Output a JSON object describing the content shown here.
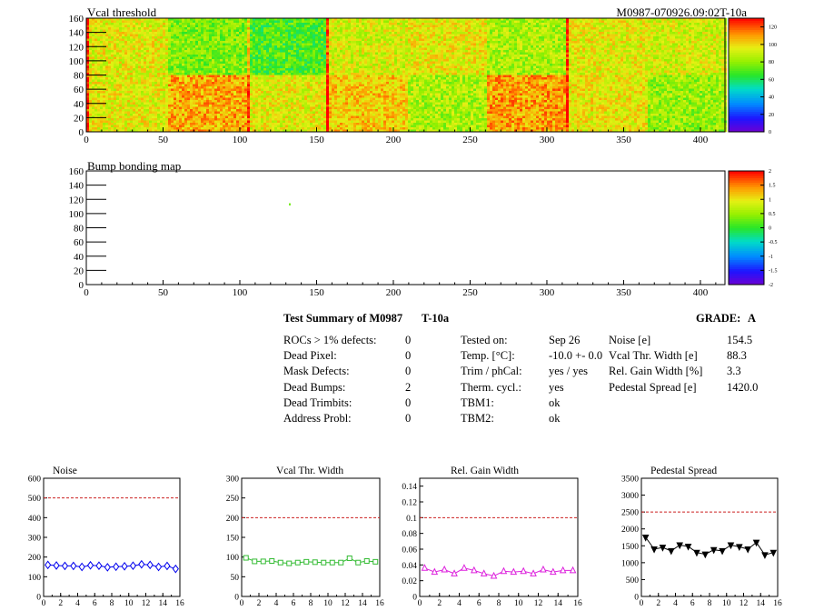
{
  "header": {
    "map1_title": "Vcal threshold",
    "module_id": "M0987-070926.09:02T-10a",
    "map2_title": "Bump bonding map"
  },
  "maps": {
    "x_ticks": [
      "0",
      "50",
      "100",
      "150",
      "200",
      "250",
      "300",
      "350",
      "400"
    ],
    "y_ticks": [
      "0",
      "20",
      "40",
      "60",
      "80",
      "100",
      "120",
      "140",
      "160"
    ],
    "threshold_palette_ticks": [
      "0",
      "20",
      "40",
      "60",
      "80",
      "100",
      "120"
    ],
    "bump_palette_ticks": [
      "-2",
      "-1.5",
      "-1",
      "-0.5",
      "0",
      "0.5",
      "1",
      "1.5",
      "2"
    ]
  },
  "summary": {
    "title": "Test Summary of M0987",
    "tag": "T-10a",
    "grade_label": "GRADE:",
    "grade": "A",
    "left": [
      {
        "label": "ROCs > 1% defects:",
        "value": "0"
      },
      {
        "label": "Dead Pixel:",
        "value": "0"
      },
      {
        "label": "Mask Defects:",
        "value": "0"
      },
      {
        "label": "Dead Bumps:",
        "value": "2"
      },
      {
        "label": "Dead Trimbits:",
        "value": "0"
      },
      {
        "label": "Address Probl:",
        "value": "0"
      }
    ],
    "middle": [
      {
        "label": "Tested on:",
        "value": "Sep 26"
      },
      {
        "label": "Temp. [°C]:",
        "value": "-10.0 +- 0.0"
      },
      {
        "label": "Trim / phCal:",
        "value": "yes / yes"
      },
      {
        "label": "Therm. cycl.:",
        "value": "yes"
      },
      {
        "label": "TBM1:",
        "value": "ok"
      },
      {
        "label": "TBM2:",
        "value": "ok"
      }
    ],
    "right": [
      {
        "label": "Noise [e]",
        "value": "154.5"
      },
      {
        "label": "Vcal Thr. Width [e]",
        "value": "88.3"
      },
      {
        "label": "Rel. Gain Width [%]",
        "value": "3.3"
      },
      {
        "label": "Pedestal Spread [e]",
        "value": "1420.0"
      }
    ]
  },
  "colors": {
    "noise": "#0000ee",
    "vcal": "#33bb33",
    "gain": "#dd22dd",
    "pedestal": "#000000",
    "limit": "#cc2222"
  },
  "chart_data": [
    {
      "type": "heatmap",
      "title": "Vcal threshold",
      "xlim": [
        0,
        416
      ],
      "ylim": [
        0,
        160
      ],
      "zlim": [
        0,
        130
      ],
      "description_cols": 8,
      "description_rows": 2,
      "roc_means_top": [
        95,
        78,
        70,
        92,
        96,
        85,
        95,
        92
      ],
      "roc_means_bottom": [
        95,
        108,
        95,
        103,
        85,
        110,
        97,
        82
      ]
    },
    {
      "type": "heatmap",
      "title": "Bump bonding map",
      "xlim": [
        0,
        416
      ],
      "ylim": [
        0,
        160
      ],
      "zlim": [
        -2,
        2
      ],
      "points": [
        {
          "x": 132,
          "y": 112,
          "z": 0.3
        }
      ]
    },
    {
      "type": "line",
      "title": "Noise",
      "x": [
        0,
        1,
        2,
        3,
        4,
        5,
        6,
        7,
        8,
        9,
        10,
        11,
        12,
        13,
        14,
        15
      ],
      "values": [
        160,
        157,
        155,
        155,
        150,
        158,
        156,
        148,
        151,
        153,
        156,
        163,
        160,
        150,
        155,
        140
      ],
      "xlim": [
        0,
        16
      ],
      "ylim": [
        0,
        600
      ],
      "xticks": [
        "0",
        "2",
        "4",
        "6",
        "8",
        "10",
        "12",
        "14",
        "16"
      ],
      "yticks": [
        "0",
        "100",
        "200",
        "300",
        "400",
        "500",
        "600"
      ],
      "limit": 500,
      "marker": "diamond"
    },
    {
      "type": "line",
      "title": "Vcal Thr. Width",
      "x": [
        0,
        1,
        2,
        3,
        4,
        5,
        6,
        7,
        8,
        9,
        10,
        11,
        12,
        13,
        14,
        15
      ],
      "values": [
        98,
        89,
        89,
        90,
        86,
        84,
        86,
        88,
        87,
        86,
        86,
        86,
        97,
        86,
        90,
        88
      ],
      "xlim": [
        0,
        16
      ],
      "ylim": [
        0,
        300
      ],
      "xticks": [
        "0",
        "2",
        "4",
        "6",
        "8",
        "10",
        "12",
        "14",
        "16"
      ],
      "yticks": [
        "0",
        "50",
        "100",
        "150",
        "200",
        "250",
        "300"
      ],
      "limit": 200,
      "marker": "square"
    },
    {
      "type": "line",
      "title": "Rel. Gain Width",
      "x": [
        0,
        1,
        2,
        3,
        4,
        5,
        6,
        7,
        8,
        9,
        10,
        11,
        12,
        13,
        14,
        15
      ],
      "values": [
        0.036,
        0.031,
        0.034,
        0.029,
        0.036,
        0.033,
        0.029,
        0.026,
        0.032,
        0.031,
        0.032,
        0.029,
        0.034,
        0.031,
        0.033,
        0.033
      ],
      "xlim": [
        0,
        16
      ],
      "ylim": [
        0,
        0.15
      ],
      "xticks": [
        "0",
        "2",
        "4",
        "6",
        "8",
        "10",
        "12",
        "14",
        "16"
      ],
      "yticks": [
        "0",
        "0.02",
        "0.04",
        "0.06",
        "0.08",
        "0.1",
        "0.12",
        "0.14"
      ],
      "limit": 0.1,
      "marker": "triangle"
    },
    {
      "type": "line",
      "title": "Pedestal Spread",
      "x": [
        0,
        1,
        2,
        3,
        4,
        5,
        6,
        7,
        8,
        9,
        10,
        11,
        12,
        13,
        14,
        15
      ],
      "values": [
        1750,
        1400,
        1450,
        1350,
        1520,
        1480,
        1300,
        1250,
        1380,
        1350,
        1520,
        1470,
        1400,
        1600,
        1230,
        1300
      ],
      "xlim": [
        0,
        16
      ],
      "ylim": [
        0,
        3500
      ],
      "xticks": [
        "0",
        "2",
        "4",
        "6",
        "8",
        "10",
        "12",
        "14",
        "16"
      ],
      "yticks": [
        "0",
        "500",
        "1000",
        "1500",
        "2000",
        "2500",
        "3000",
        "3500"
      ],
      "limit": 2500,
      "marker": "triangle-down"
    }
  ]
}
